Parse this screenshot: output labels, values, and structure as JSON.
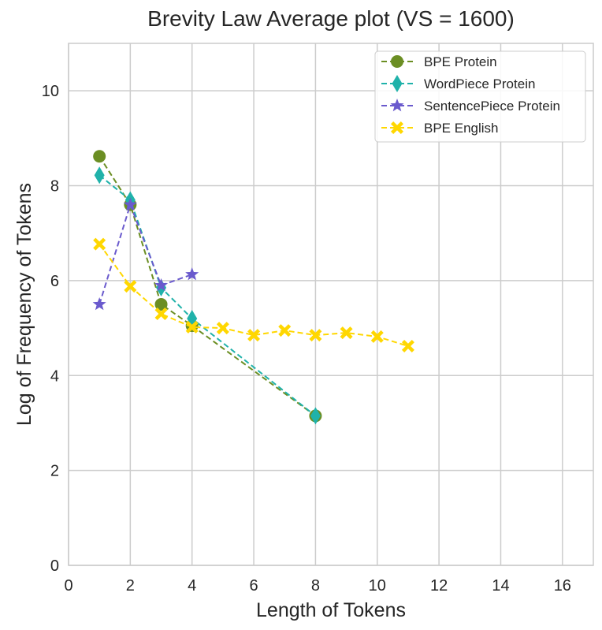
{
  "chart_data": {
    "type": "line",
    "title": "Brevity Law Average plot (VS = 1600)",
    "xlabel": "Length of Tokens",
    "ylabel": "Log of Frequency of Tokens",
    "xlim": [
      0,
      17
    ],
    "ylim": [
      0,
      11
    ],
    "xticks": [
      0,
      2,
      4,
      6,
      8,
      10,
      12,
      14,
      16
    ],
    "yticks": [
      0,
      2,
      4,
      6,
      8,
      10
    ],
    "grid": true,
    "legend_position": "top-right",
    "series": [
      {
        "name": "BPE Protein",
        "color": "#6b8e23",
        "marker": "circle",
        "x": [
          1,
          2,
          3,
          4,
          8
        ],
        "y": [
          8.62,
          7.6,
          5.5,
          5.05,
          3.15
        ]
      },
      {
        "name": "WordPiece Protein",
        "color": "#20b2aa",
        "marker": "thin-diamond",
        "x": [
          1,
          2,
          3,
          4,
          8
        ],
        "y": [
          8.22,
          7.7,
          5.85,
          5.2,
          3.15
        ]
      },
      {
        "name": "SentencePiece Protein",
        "color": "#6a5acd",
        "marker": "star",
        "x": [
          1,
          2,
          3,
          4
        ],
        "y": [
          5.5,
          7.6,
          5.9,
          6.13
        ]
      },
      {
        "name": "BPE English",
        "color": "#ffd700",
        "marker": "x-filled",
        "x": [
          1,
          2,
          3,
          4,
          5,
          6,
          7,
          8,
          9,
          10,
          11
        ],
        "y": [
          6.77,
          5.88,
          5.3,
          5.02,
          5.0,
          4.85,
          4.95,
          4.85,
          4.9,
          4.82,
          4.62
        ]
      }
    ]
  }
}
